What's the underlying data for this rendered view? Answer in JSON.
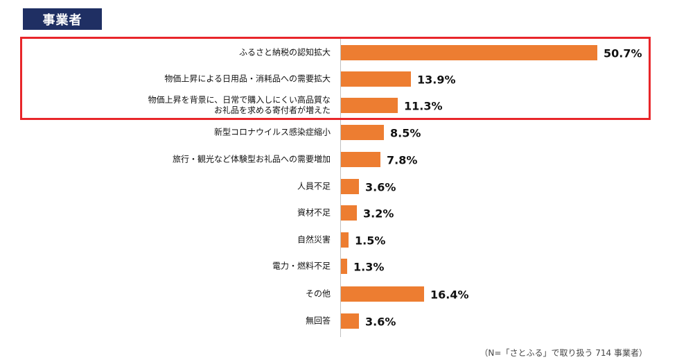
{
  "title": "事業者",
  "footnote": "（N=「さとふる」で取り扱う 714 事業者）",
  "colors": {
    "bar": "#ed7d31",
    "title_bg": "#1f2f63",
    "highlight": "#e8262a"
  },
  "chart_data": {
    "type": "bar",
    "orientation": "horizontal",
    "unit": "%",
    "categories": [
      "ふるさと納税の認知拡大",
      "物価上昇による日用品・消耗品への需要拡大",
      "物価上昇を背景に、日常で購入しにくい高品質な\nお礼品を求める寄付者が増えた",
      "新型コロナウイルス感染症縮小",
      "旅行・観光など体験型お礼品への需要増加",
      "人員不足",
      "資材不足",
      "自然災害",
      "電力・燃料不足",
      "その他",
      "無回答"
    ],
    "values": [
      50.7,
      13.9,
      11.3,
      8.5,
      7.8,
      3.6,
      3.2,
      1.5,
      1.3,
      16.4,
      3.6
    ],
    "value_labels": [
      "50.7%",
      "13.9%",
      "11.3%",
      "8.5%",
      "7.8%",
      "3.6%",
      "3.2%",
      "1.5%",
      "1.3%",
      "16.4%",
      "3.6%"
    ],
    "highlighted_categories": [
      0,
      1,
      2
    ]
  }
}
